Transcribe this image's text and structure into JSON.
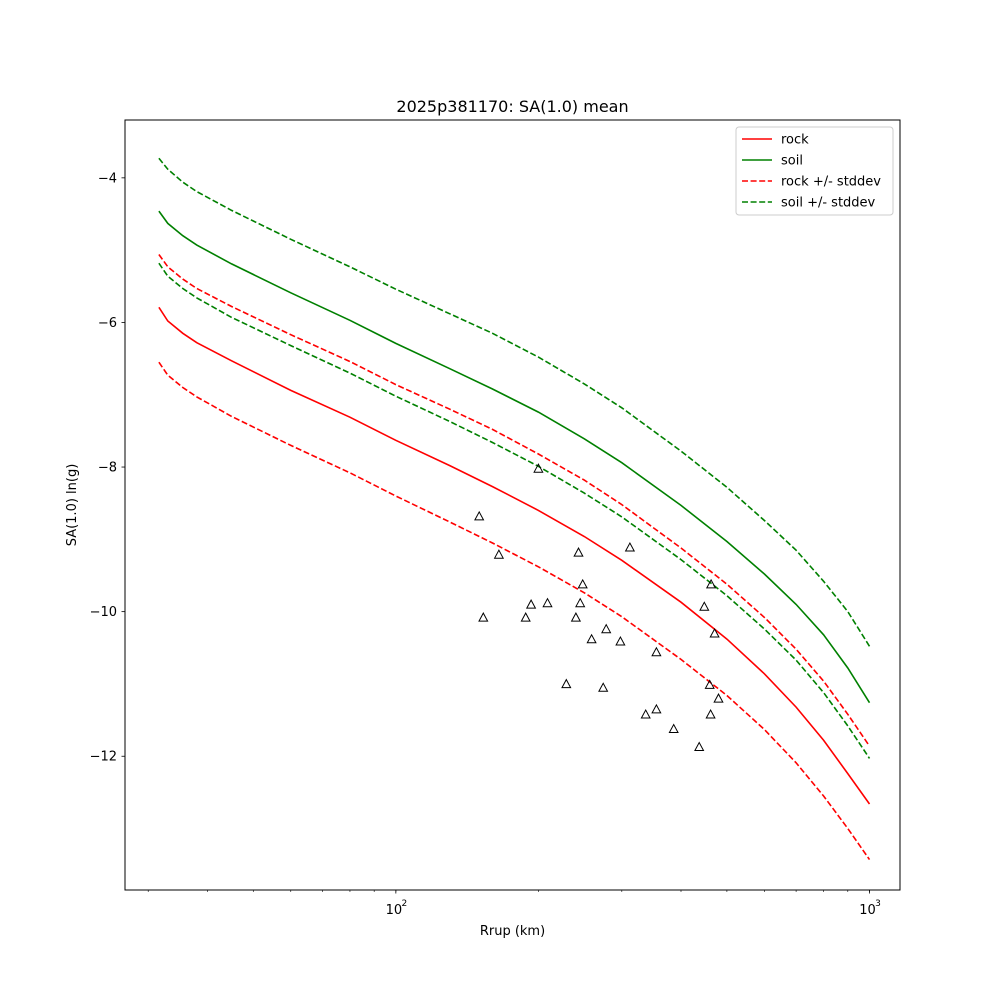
{
  "chart_data": {
    "type": "line",
    "title": "2025p381170: SA(1.0) mean",
    "xlabel": "Rrup (km)",
    "ylabel": "SA(1.0) ln(g)",
    "x_scale": "log",
    "xlim": [
      26.8,
      1160
    ],
    "ylim": [
      -13.85,
      -3.2
    ],
    "grid": false,
    "legend_position": "top-right",
    "x_ticks": [
      {
        "value": 100,
        "label": "10",
        "exp": "2"
      },
      {
        "value": 1000,
        "label": "10",
        "exp": "3"
      }
    ],
    "y_ticks": [
      {
        "value": -12,
        "label": "−12"
      },
      {
        "value": -10,
        "label": "−10"
      },
      {
        "value": -8,
        "label": "−8"
      },
      {
        "value": -6,
        "label": "−6"
      },
      {
        "value": -4,
        "label": "−4"
      }
    ],
    "series": [
      {
        "name": "soil +/- stddev",
        "color": "#008000",
        "dashed": true,
        "x": [
          31.6,
          33.0,
          35.5,
          38.0,
          45,
          60,
          80,
          100,
          130,
          160,
          200,
          250,
          300,
          400,
          500,
          600,
          700,
          800,
          900,
          1000
        ],
        "y": [
          -3.73,
          -3.88,
          -4.06,
          -4.19,
          -4.45,
          -4.85,
          -5.23,
          -5.54,
          -5.88,
          -6.15,
          -6.48,
          -6.85,
          -7.18,
          -7.78,
          -8.28,
          -8.74,
          -9.15,
          -9.58,
          -10.0,
          -10.48
        ]
      },
      {
        "name": "soil",
        "color": "#008000",
        "dashed": false,
        "x": [
          31.6,
          33.0,
          35.5,
          38.0,
          45,
          60,
          80,
          100,
          130,
          160,
          200,
          250,
          300,
          400,
          500,
          600,
          700,
          800,
          900,
          1000
        ],
        "y": [
          -4.46,
          -4.63,
          -4.8,
          -4.93,
          -5.19,
          -5.59,
          -5.97,
          -6.29,
          -6.64,
          -6.92,
          -7.24,
          -7.61,
          -7.94,
          -8.53,
          -9.03,
          -9.48,
          -9.9,
          -10.32,
          -10.78,
          -11.26
        ]
      },
      {
        "name": "rock +/- stddev",
        "color": "#ff0000",
        "dashed": true,
        "x": [
          31.6,
          33.0,
          35.5,
          38.0,
          45,
          60,
          80,
          100,
          130,
          160,
          200,
          250,
          300,
          400,
          500,
          600,
          700,
          800,
          900,
          1000
        ],
        "y": [
          -5.06,
          -5.23,
          -5.4,
          -5.53,
          -5.78,
          -6.17,
          -6.54,
          -6.86,
          -7.2,
          -7.48,
          -7.82,
          -8.18,
          -8.52,
          -9.12,
          -9.62,
          -10.08,
          -10.52,
          -10.96,
          -11.42,
          -11.86
        ]
      },
      {
        "name": "soil +/- stddev",
        "color": "#008000",
        "dashed": true,
        "x": [
          31.6,
          33.0,
          35.5,
          38.0,
          45,
          60,
          80,
          100,
          130,
          160,
          200,
          250,
          300,
          400,
          500,
          600,
          700,
          800,
          900,
          1000
        ],
        "y": [
          -5.18,
          -5.36,
          -5.53,
          -5.66,
          -5.93,
          -6.32,
          -6.7,
          -7.02,
          -7.37,
          -7.66,
          -7.99,
          -8.36,
          -8.69,
          -9.28,
          -9.78,
          -10.24,
          -10.67,
          -11.12,
          -11.58,
          -12.03
        ]
      },
      {
        "name": "rock",
        "color": "#ff0000",
        "dashed": false,
        "x": [
          31.6,
          33.0,
          35.5,
          38.0,
          45,
          60,
          80,
          100,
          130,
          160,
          200,
          250,
          300,
          400,
          500,
          600,
          700,
          800,
          900,
          1000
        ],
        "y": [
          -5.79,
          -5.98,
          -6.15,
          -6.28,
          -6.53,
          -6.94,
          -7.31,
          -7.63,
          -7.98,
          -8.27,
          -8.6,
          -8.96,
          -9.29,
          -9.87,
          -10.38,
          -10.86,
          -11.32,
          -11.78,
          -12.24,
          -12.66
        ]
      },
      {
        "name": "rock +/- stddev",
        "color": "#ff0000",
        "dashed": true,
        "x": [
          31.6,
          33.0,
          35.5,
          38.0,
          45,
          60,
          80,
          100,
          130,
          160,
          200,
          250,
          300,
          400,
          500,
          600,
          700,
          800,
          900,
          1000
        ],
        "y": [
          -6.55,
          -6.73,
          -6.9,
          -7.03,
          -7.3,
          -7.7,
          -8.08,
          -8.4,
          -8.76,
          -9.05,
          -9.38,
          -9.74,
          -10.07,
          -10.66,
          -11.16,
          -11.63,
          -12.09,
          -12.55,
          -13.0,
          -13.43
        ]
      }
    ],
    "observations": {
      "marker": "triangle",
      "x": [
        150,
        153,
        165,
        188,
        193,
        200,
        209,
        229,
        240,
        243,
        245,
        248,
        259,
        274,
        278,
        298,
        312,
        337,
        355,
        355,
        386,
        437,
        448,
        460,
        462,
        463,
        471,
        480
      ],
      "y": [
        -8.68,
        -10.08,
        -9.21,
        -10.08,
        -9.9,
        -8.02,
        -9.88,
        -11.0,
        -10.08,
        -9.18,
        -9.88,
        -9.62,
        -10.38,
        -11.05,
        -10.24,
        -10.41,
        -9.11,
        -11.42,
        -11.35,
        -10.56,
        -11.62,
        -11.87,
        -9.93,
        -11.01,
        -11.42,
        -9.62,
        -10.3,
        -11.2
      ]
    },
    "legend": [
      {
        "label": "rock",
        "color": "#ff0000",
        "dashed": false
      },
      {
        "label": "soil",
        "color": "#008000",
        "dashed": false
      },
      {
        "label": "rock +/- stddev",
        "color": "#ff0000",
        "dashed": true
      },
      {
        "label": "soil +/- stddev",
        "color": "#008000",
        "dashed": true
      }
    ]
  }
}
